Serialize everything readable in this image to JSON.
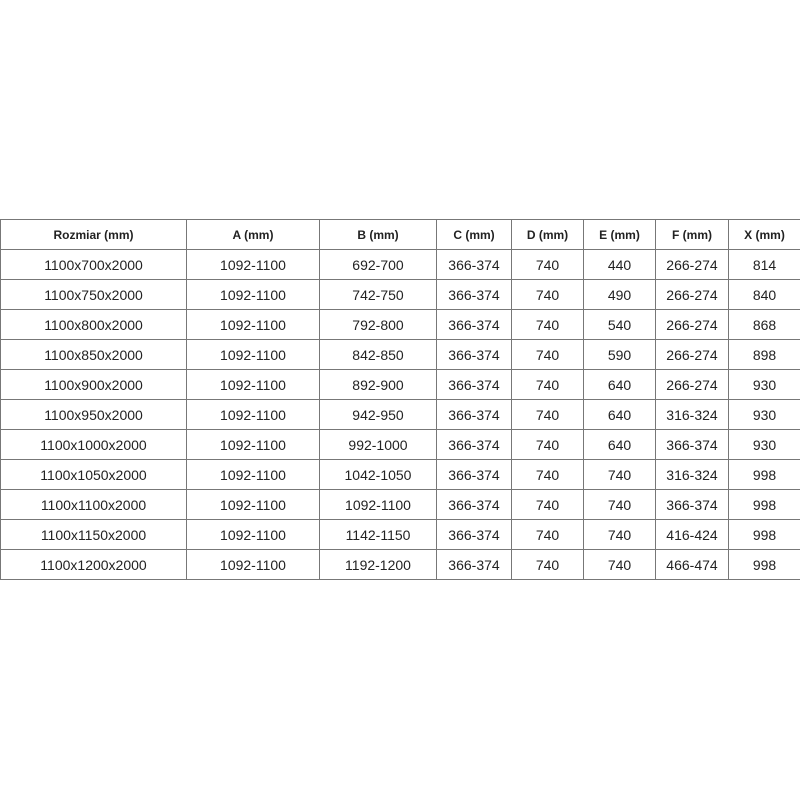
{
  "table": {
    "headers": [
      "Rozmiar (mm)",
      "A (mm)",
      "B (mm)",
      "C (mm)",
      "D (mm)",
      "E (mm)",
      "F (mm)",
      "X (mm)"
    ],
    "rows": [
      [
        "1100x700x2000",
        "1092-1100",
        "692-700",
        "366-374",
        "740",
        "440",
        "266-274",
        "814"
      ],
      [
        "1100x750x2000",
        "1092-1100",
        "742-750",
        "366-374",
        "740",
        "490",
        "266-274",
        "840"
      ],
      [
        "1100x800x2000",
        "1092-1100",
        "792-800",
        "366-374",
        "740",
        "540",
        "266-274",
        "868"
      ],
      [
        "1100x850x2000",
        "1092-1100",
        "842-850",
        "366-374",
        "740",
        "590",
        "266-274",
        "898"
      ],
      [
        "1100x900x2000",
        "1092-1100",
        "892-900",
        "366-374",
        "740",
        "640",
        "266-274",
        "930"
      ],
      [
        "1100x950x2000",
        "1092-1100",
        "942-950",
        "366-374",
        "740",
        "640",
        "316-324",
        "930"
      ],
      [
        "1100x1000x2000",
        "1092-1100",
        "992-1000",
        "366-374",
        "740",
        "640",
        "366-374",
        "930"
      ],
      [
        "1100x1050x2000",
        "1092-1100",
        "1042-1050",
        "366-374",
        "740",
        "740",
        "316-324",
        "998"
      ],
      [
        "1100x1100x2000",
        "1092-1100",
        "1092-1100",
        "366-374",
        "740",
        "740",
        "366-374",
        "998"
      ],
      [
        "1100x1150x2000",
        "1092-1100",
        "1142-1150",
        "366-374",
        "740",
        "740",
        "416-424",
        "998"
      ],
      [
        "1100x1200x2000",
        "1092-1100",
        "1192-1200",
        "366-374",
        "740",
        "740",
        "466-474",
        "998"
      ]
    ]
  }
}
